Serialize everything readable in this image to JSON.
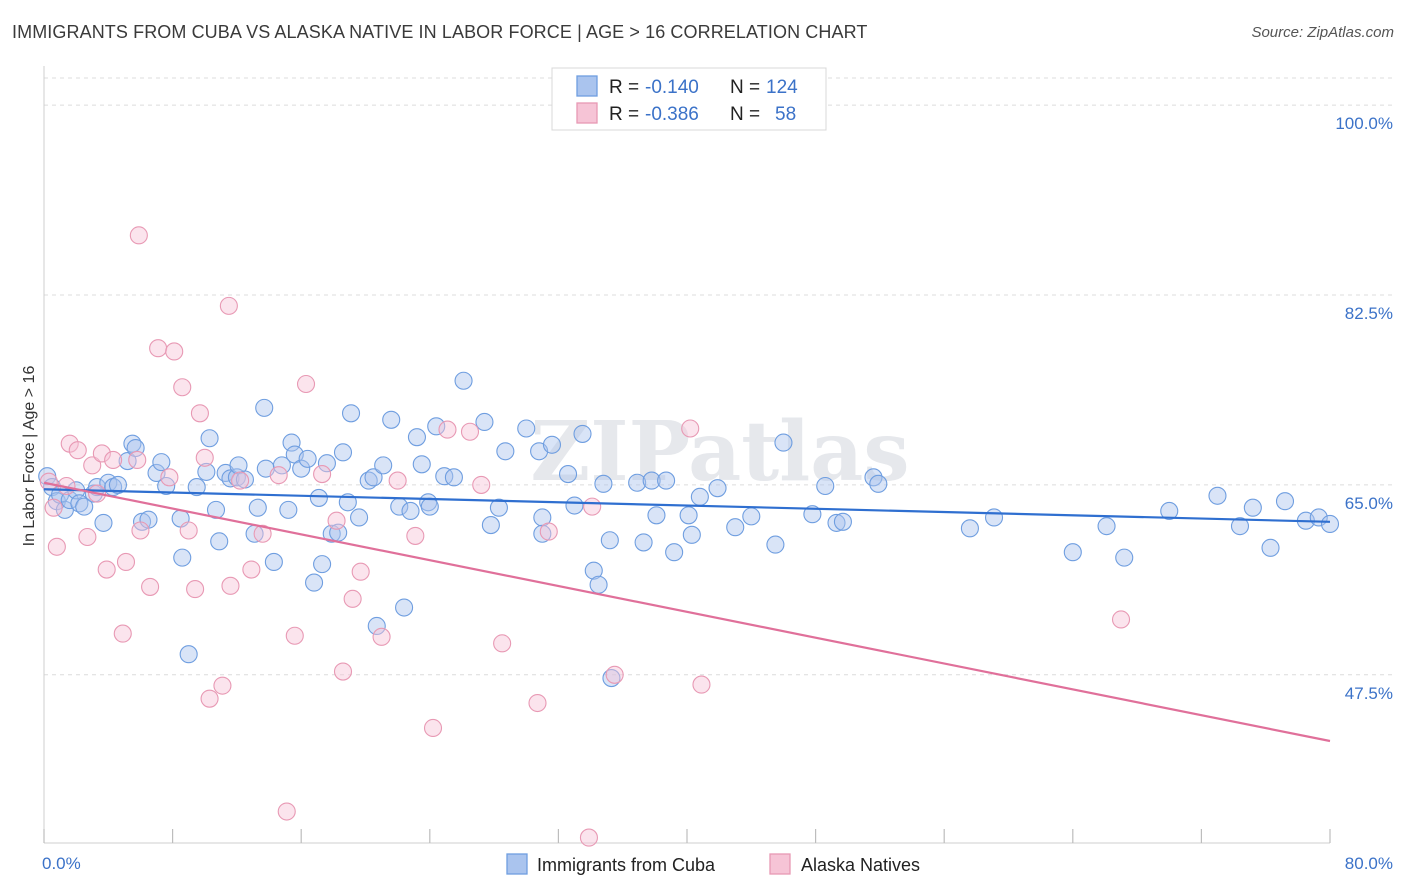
{
  "title": "IMMIGRANTS FROM CUBA VS ALASKA NATIVE IN LABOR FORCE | AGE > 16 CORRELATION CHART",
  "source": "Source: ZipAtlas.com",
  "watermark": "ZIPatlas",
  "chart_data": {
    "type": "scatter",
    "title": "IMMIGRANTS FROM CUBA VS ALASKA NATIVE IN LABOR FORCE | AGE > 16 CORRELATION CHART",
    "xlabel": "",
    "ylabel": "In Labor Force | Age > 16",
    "xlim": [
      0,
      80
    ],
    "ylim": [
      32.0,
      102.5
    ],
    "x_tick_labels": [
      "0.0%",
      "80.0%"
    ],
    "y_ticks": [
      47.5,
      65.0,
      82.5,
      100.0
    ],
    "y_tick_labels": [
      "47.5%",
      "65.0%",
      "82.5%",
      "100.0%"
    ],
    "grid": true,
    "legend_position": "top-center",
    "legend": [
      {
        "r_label": "R = ",
        "r_value": "-0.140",
        "n_label": "N = ",
        "n_value": "124"
      },
      {
        "r_label": "R = ",
        "r_value": "-0.386",
        "n_label": "N = ",
        "n_value": "58"
      }
    ],
    "series": [
      {
        "name": "Immigrants from Cuba",
        "color": "#6f9ee0",
        "fill": "#aac4ee",
        "trend": {
          "x": [
            0,
            80
          ],
          "y": [
            64.6,
            61.6
          ]
        },
        "points": [
          [
            0.2,
            65.8
          ],
          [
            0.5,
            64.8
          ],
          [
            0.8,
            63.5
          ],
          [
            1.0,
            64.1
          ],
          [
            1.3,
            62.7
          ],
          [
            1.6,
            63.6
          ],
          [
            2.0,
            64.5
          ],
          [
            2.2,
            63.3
          ],
          [
            2.5,
            63.0
          ],
          [
            3.1,
            64.2
          ],
          [
            3.3,
            64.8
          ],
          [
            3.7,
            61.5
          ],
          [
            4.0,
            65.2
          ],
          [
            4.3,
            64.8
          ],
          [
            4.6,
            65.0
          ],
          [
            5.2,
            67.2
          ],
          [
            5.5,
            68.8
          ],
          [
            5.7,
            68.4
          ],
          [
            6.1,
            61.6
          ],
          [
            6.5,
            61.8
          ],
          [
            7.0,
            66.1
          ],
          [
            7.3,
            67.1
          ],
          [
            7.6,
            64.9
          ],
          [
            8.5,
            61.9
          ],
          [
            8.6,
            58.3
          ],
          [
            9.0,
            49.4
          ],
          [
            9.5,
            64.8
          ],
          [
            10.1,
            66.2
          ],
          [
            10.3,
            69.3
          ],
          [
            10.7,
            62.7
          ],
          [
            10.9,
            59.8
          ],
          [
            11.3,
            66.1
          ],
          [
            11.6,
            65.6
          ],
          [
            12.0,
            65.7
          ],
          [
            12.1,
            66.8
          ],
          [
            12.5,
            65.5
          ],
          [
            13.1,
            60.5
          ],
          [
            13.3,
            62.9
          ],
          [
            13.7,
            72.1
          ],
          [
            13.8,
            66.5
          ],
          [
            14.3,
            57.9
          ],
          [
            14.8,
            66.8
          ],
          [
            15.2,
            62.7
          ],
          [
            15.4,
            68.9
          ],
          [
            15.6,
            67.8
          ],
          [
            16.0,
            66.5
          ],
          [
            16.4,
            67.4
          ],
          [
            16.8,
            56.0
          ],
          [
            17.1,
            63.8
          ],
          [
            17.3,
            57.7
          ],
          [
            17.6,
            67.0
          ],
          [
            17.9,
            60.5
          ],
          [
            18.3,
            60.6
          ],
          [
            18.6,
            68.0
          ],
          [
            18.9,
            63.4
          ],
          [
            19.1,
            71.6
          ],
          [
            19.6,
            62.0
          ],
          [
            20.2,
            65.4
          ],
          [
            20.5,
            65.7
          ],
          [
            20.7,
            52.0
          ],
          [
            21.1,
            66.8
          ],
          [
            21.6,
            71.0
          ],
          [
            22.1,
            63.0
          ],
          [
            22.4,
            53.7
          ],
          [
            22.8,
            62.6
          ],
          [
            23.2,
            69.4
          ],
          [
            23.5,
            66.9
          ],
          [
            23.9,
            63.4
          ],
          [
            24.0,
            63.0
          ],
          [
            24.4,
            70.4
          ],
          [
            24.9,
            65.8
          ],
          [
            25.5,
            65.7
          ],
          [
            26.1,
            74.6
          ],
          [
            27.4,
            70.8
          ],
          [
            27.8,
            61.3
          ],
          [
            28.3,
            62.9
          ],
          [
            28.7,
            68.1
          ],
          [
            30.0,
            70.2
          ],
          [
            30.8,
            68.1
          ],
          [
            31.0,
            62.0
          ],
          [
            31.0,
            60.5
          ],
          [
            31.6,
            68.7
          ],
          [
            32.6,
            66.0
          ],
          [
            33.0,
            63.1
          ],
          [
            33.5,
            69.7
          ],
          [
            34.2,
            57.1
          ],
          [
            34.5,
            55.8
          ],
          [
            34.8,
            65.1
          ],
          [
            35.2,
            59.9
          ],
          [
            35.3,
            47.2
          ],
          [
            36.9,
            65.2
          ],
          [
            37.3,
            59.7
          ],
          [
            37.8,
            65.4
          ],
          [
            38.1,
            62.2
          ],
          [
            38.7,
            65.4
          ],
          [
            39.2,
            58.8
          ],
          [
            40.1,
            62.2
          ],
          [
            40.3,
            60.4
          ],
          [
            40.8,
            63.9
          ],
          [
            41.9,
            64.7
          ],
          [
            43.0,
            61.1
          ],
          [
            44.0,
            62.1
          ],
          [
            45.5,
            59.5
          ],
          [
            46.0,
            68.9
          ],
          [
            47.8,
            62.3
          ],
          [
            48.6,
            64.9
          ],
          [
            49.3,
            61.5
          ],
          [
            49.7,
            61.6
          ],
          [
            51.6,
            65.7
          ],
          [
            51.9,
            65.1
          ],
          [
            57.6,
            61.0
          ],
          [
            59.1,
            62.0
          ],
          [
            64.0,
            58.8
          ],
          [
            66.1,
            61.2
          ],
          [
            67.2,
            58.3
          ],
          [
            70.0,
            62.6
          ],
          [
            73.0,
            64.0
          ],
          [
            74.4,
            61.2
          ],
          [
            75.2,
            62.9
          ],
          [
            76.3,
            59.2
          ],
          [
            77.2,
            63.5
          ],
          [
            78.5,
            61.7
          ],
          [
            79.3,
            62.0
          ],
          [
            80.0,
            61.4
          ]
        ]
      },
      {
        "name": "Alaska Natives",
        "color": "#e899b4",
        "fill": "#f6c4d6",
        "trend": {
          "x": [
            0,
            80
          ],
          "y": [
            65.2,
            41.4
          ]
        },
        "points": [
          [
            0.3,
            65.3
          ],
          [
            0.6,
            62.9
          ],
          [
            0.8,
            59.3
          ],
          [
            1.4,
            64.9
          ],
          [
            1.6,
            68.8
          ],
          [
            2.1,
            68.2
          ],
          [
            2.7,
            60.2
          ],
          [
            3.0,
            66.8
          ],
          [
            3.3,
            64.2
          ],
          [
            3.6,
            67.9
          ],
          [
            3.9,
            57.2
          ],
          [
            4.3,
            67.3
          ],
          [
            4.9,
            51.3
          ],
          [
            5.1,
            57.9
          ],
          [
            5.8,
            67.3
          ],
          [
            5.9,
            88.0
          ],
          [
            6.0,
            60.8
          ],
          [
            6.6,
            55.6
          ],
          [
            7.1,
            77.6
          ],
          [
            7.8,
            65.7
          ],
          [
            8.1,
            77.3
          ],
          [
            8.6,
            74.0
          ],
          [
            9.0,
            60.8
          ],
          [
            9.4,
            55.4
          ],
          [
            9.7,
            71.6
          ],
          [
            10.0,
            67.5
          ],
          [
            10.3,
            45.3
          ],
          [
            11.1,
            46.5
          ],
          [
            11.5,
            81.5
          ],
          [
            11.6,
            55.7
          ],
          [
            12.2,
            65.4
          ],
          [
            12.9,
            57.2
          ],
          [
            13.6,
            60.5
          ],
          [
            14.6,
            65.9
          ],
          [
            15.1,
            34.9
          ],
          [
            15.6,
            51.1
          ],
          [
            16.3,
            74.3
          ],
          [
            17.3,
            66.0
          ],
          [
            18.2,
            61.7
          ],
          [
            18.6,
            47.8
          ],
          [
            19.2,
            54.5
          ],
          [
            19.7,
            57.0
          ],
          [
            21.0,
            51.0
          ],
          [
            22.0,
            65.4
          ],
          [
            23.1,
            60.3
          ],
          [
            24.2,
            42.6
          ],
          [
            25.1,
            70.1
          ],
          [
            26.5,
            69.9
          ],
          [
            27.2,
            65.0
          ],
          [
            28.5,
            50.4
          ],
          [
            30.7,
            44.9
          ],
          [
            31.4,
            60.7
          ],
          [
            33.9,
            32.5
          ],
          [
            34.1,
            63.0
          ],
          [
            35.5,
            47.5
          ],
          [
            40.2,
            70.2
          ],
          [
            40.9,
            46.6
          ],
          [
            67.0,
            52.6
          ]
        ]
      }
    ]
  },
  "bottom_legend": [
    {
      "label": "Immigrants from Cuba"
    },
    {
      "label": "Alaska Natives"
    }
  ]
}
